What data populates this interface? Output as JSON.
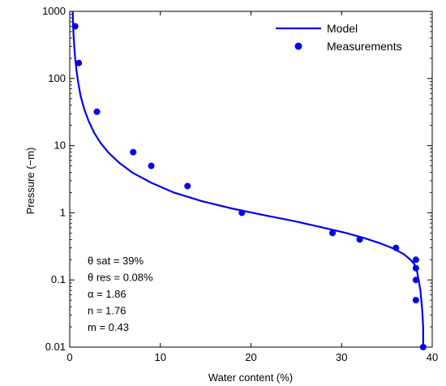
{
  "chart_data": {
    "type": "scatter",
    "xlabel": "Water content (%)",
    "ylabel": "Pressure (−m)",
    "xlim": [
      0,
      40
    ],
    "ylim": [
      0.01,
      1000
    ],
    "yscale": "log",
    "x_ticks": [
      0,
      10,
      20,
      30,
      40
    ],
    "x_tick_labels": [
      "0",
      "10",
      "20",
      "30",
      "40"
    ],
    "y_ticks": [
      0.01,
      0.1,
      1,
      10,
      100,
      1000
    ],
    "y_tick_labels": [
      "0.01",
      "0.1",
      "1",
      "10",
      "100",
      "1000"
    ],
    "grid": false,
    "legend_position": "top-right",
    "series": [
      {
        "name": "Model",
        "kind": "line",
        "color": "#0000ee",
        "x": [
          0.33,
          0.36,
          0.42,
          0.5,
          0.6,
          0.75,
          0.95,
          1.2,
          1.6,
          2.1,
          2.7,
          3.4,
          4.3,
          5.5,
          7,
          9,
          11.5,
          14.5,
          18,
          21.5,
          25,
          28,
          30.5,
          32.5,
          34.3,
          35.8,
          36.9,
          37.6,
          38.05,
          38.3,
          38.5,
          38.7,
          38.9,
          39,
          39
        ],
        "y": [
          1000,
          700,
          450,
          300,
          200,
          130,
          85,
          55,
          35,
          23,
          15.5,
          11,
          7.8,
          5.5,
          3.9,
          2.8,
          2.0,
          1.5,
          1.15,
          0.92,
          0.74,
          0.6,
          0.5,
          0.42,
          0.35,
          0.29,
          0.24,
          0.2,
          0.17,
          0.14,
          0.1,
          0.07,
          0.035,
          0.02,
          0.01
        ]
      },
      {
        "name": "Measurements",
        "kind": "scatter",
        "color": "#0000ee",
        "x": [
          0.6,
          1,
          3,
          7,
          9,
          13,
          19,
          29,
          32,
          36,
          38.2,
          38.2,
          38.2,
          38.2,
          39
        ],
        "y": [
          600,
          170,
          32,
          8,
          5,
          2.5,
          1.0,
          0.5,
          0.4,
          0.3,
          0.2,
          0.15,
          0.1,
          0.05,
          0.01
        ]
      }
    ],
    "annotations": [
      "θ sat = 39%",
      "θ res = 0.08%",
      "α = 1.86",
      "n = 1.76",
      "m = 0.43"
    ]
  }
}
